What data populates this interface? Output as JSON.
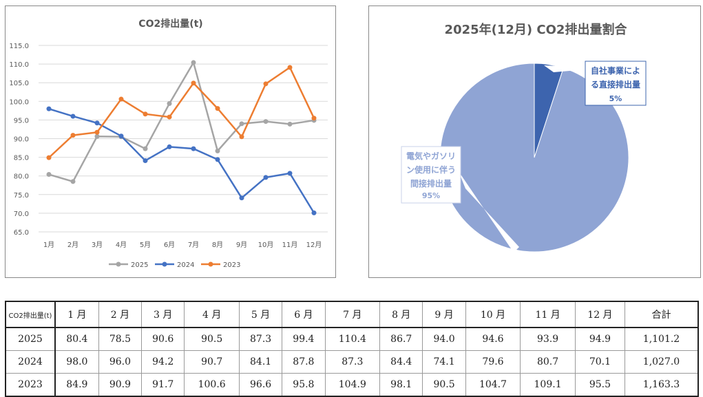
{
  "chart_data": [
    {
      "type": "line",
      "title": "CO2排出量(t)",
      "categories": [
        "1月",
        "2月",
        "3月",
        "4月",
        "5月",
        "6月",
        "7月",
        "8月",
        "9月",
        "10月",
        "11月",
        "12月"
      ],
      "ylim": [
        65,
        115
      ],
      "yticks": [
        "65.0",
        "70.0",
        "75.0",
        "80.0",
        "85.0",
        "90.0",
        "95.0",
        "100.0",
        "105.0",
        "110.0",
        "115.0"
      ],
      "grid": true,
      "legend": "bottom",
      "series": [
        {
          "name": "2025",
          "color": "#a5a5a5",
          "values": [
            80.4,
            78.5,
            90.6,
            90.5,
            87.3,
            99.4,
            110.4,
            86.7,
            94.0,
            94.6,
            93.9,
            94.9
          ]
        },
        {
          "name": "2024",
          "color": "#4472c4",
          "values": [
            98.0,
            96.0,
            94.2,
            90.7,
            84.1,
            87.8,
            87.3,
            84.4,
            74.1,
            79.6,
            80.7,
            70.1
          ]
        },
        {
          "name": "2023",
          "color": "#ed7d31",
          "values": [
            84.9,
            90.9,
            91.7,
            100.6,
            96.6,
            95.8,
            104.9,
            98.1,
            90.5,
            104.7,
            109.1,
            95.5
          ]
        }
      ]
    },
    {
      "type": "pie",
      "title": "2025年(12月) CO2排出量割合",
      "slices": [
        {
          "label": "自社事業による直接排出量",
          "value": 5,
          "pct": "5%",
          "color": "#3d64ae"
        },
        {
          "label": "電気やガソリン使用に伴う間接排出量",
          "value": 95,
          "pct": "95%",
          "color": "#8fa4d4"
        }
      ]
    }
  ],
  "table": {
    "header": [
      "CO2排出量(t)",
      "1 月",
      "2 月",
      "3 月",
      "4 月",
      "5 月",
      "6 月",
      "7 月",
      "8 月",
      "9 月",
      "10 月",
      "11 月",
      "12 月",
      "合計"
    ],
    "rows": [
      [
        "2025",
        "80.4",
        "78.5",
        "90.6",
        "90.5",
        "87.3",
        "99.4",
        "110.4",
        "86.7",
        "94.0",
        "94.6",
        "93.9",
        "94.9",
        "1,101.2"
      ],
      [
        "2024",
        "98.0",
        "96.0",
        "94.2",
        "90.7",
        "84.1",
        "87.8",
        "87.3",
        "84.4",
        "74.1",
        "79.6",
        "80.7",
        "70.1",
        "1,027.0"
      ],
      [
        "2023",
        "84.9",
        "90.9",
        "91.7",
        "100.6",
        "96.6",
        "95.8",
        "104.9",
        "98.1",
        "90.5",
        "104.7",
        "109.1",
        "95.5",
        "1,163.3"
      ]
    ]
  }
}
